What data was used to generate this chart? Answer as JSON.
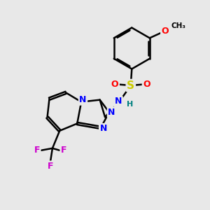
{
  "background_color": "#e8e8e8",
  "bond_color": "#000000",
  "bond_width": 1.8,
  "atom_colors": {
    "N": "#0000ff",
    "O": "#ff0000",
    "S": "#cccc00",
    "F": "#cc00cc",
    "H": "#008080",
    "C": "#000000"
  },
  "font_size_atom": 9,
  "font_size_small": 8
}
